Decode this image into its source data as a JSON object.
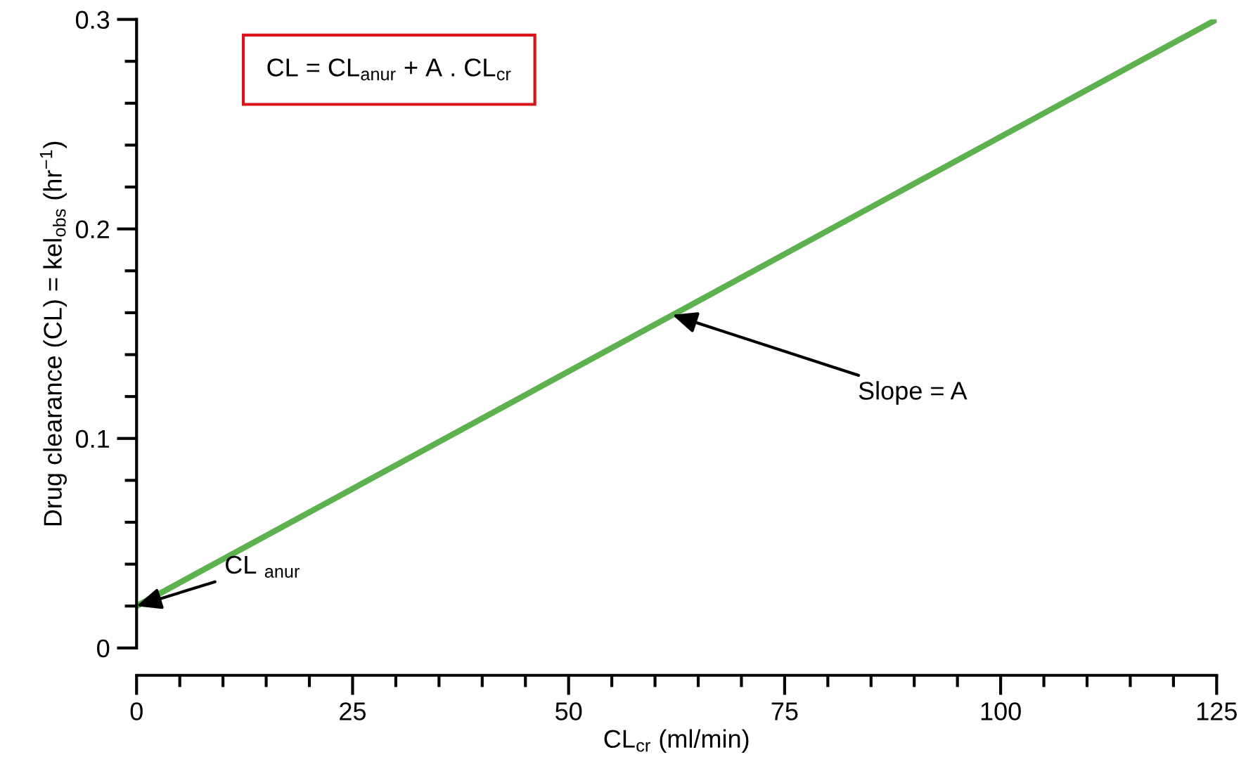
{
  "chart_data": {
    "type": "line",
    "xlabel": "CL$_{cr}$ (ml/min)",
    "ylabel": "Drug clearance (CL) = kel$_{obs}$ (hr$^{−1}$)",
    "series": [
      {
        "color": "#5db14e",
        "x": [
          0,
          125
        ],
        "values": [
          0.02,
          0.3
        ]
      }
    ],
    "xlim": [
      0,
      125
    ],
    "xticks": [
      0,
      25,
      50,
      75,
      100,
      125
    ],
    "ylim": [
      0,
      0.3
    ],
    "yticks": [
      0,
      0.1,
      0.2,
      0.3
    ],
    "grid": false,
    "legend": false,
    "marker": "none",
    "line_style": "solid",
    "annotations": [
      "CL = CL$_{anur}$ + A . CL$_{cr}$",
      {
        "text": "Slope = A",
        "x": 62,
        "y": 0.159
      },
      {
        "text": "CL $_{anur}$",
        "x": 0,
        "y": 0.02
      }
    ]
  }
}
